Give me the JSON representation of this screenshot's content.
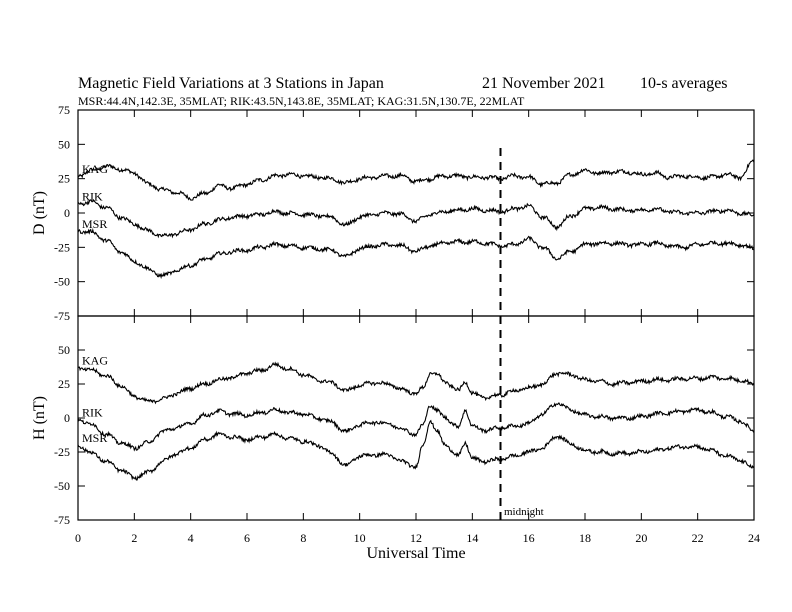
{
  "figure": {
    "title": "Magnetic Field Variations at 3 Stations in Japan",
    "date": "21 November 2021",
    "averaging": "10-s averages",
    "subtitle": "MSR:44.4N,142.3E, 35MLAT;  RIK:43.5N,143.8E, 35MLAT;  KAG:31.5N,130.7E, 22MLAT",
    "midnight_label": "midnight",
    "colors": {
      "line": "#000000",
      "background": "#ffffff"
    }
  },
  "chart_data": [
    {
      "type": "line",
      "ylabel": "D (nT)",
      "xlabel": "",
      "xlim": [
        0,
        24
      ],
      "ylim": [
        -75,
        75
      ],
      "yticks": [
        75,
        50,
        25,
        0,
        -25,
        -50,
        -75
      ],
      "xticks": [
        0,
        2,
        4,
        6,
        8,
        10,
        12,
        14,
        16,
        18,
        20,
        22,
        24
      ],
      "grid": false,
      "midnight_ut": 15,
      "series": [
        {
          "name": "KAG",
          "x": [
            0,
            0.5,
            1,
            1.5,
            2,
            2.5,
            3,
            3.5,
            4,
            4.5,
            5,
            5.5,
            6,
            6.5,
            7,
            7.5,
            8,
            8.5,
            9,
            9.5,
            10,
            10.5,
            11,
            11.5,
            12,
            12.5,
            13,
            13.5,
            14,
            14.5,
            15,
            15.5,
            16,
            16.5,
            17,
            17.5,
            18,
            18.5,
            19,
            19.5,
            20,
            20.5,
            21,
            21.5,
            22,
            22.5,
            23,
            23.5,
            24
          ],
          "values": [
            27,
            31,
            34,
            32,
            29,
            21,
            17,
            15,
            11,
            14,
            20,
            18,
            21,
            24,
            27,
            28,
            27,
            26,
            25,
            22,
            25,
            26,
            27,
            27,
            23,
            25,
            27,
            27,
            26,
            26,
            25,
            27,
            26,
            21,
            22,
            28,
            31,
            29,
            30,
            30,
            28,
            29,
            26,
            27,
            26,
            26,
            28,
            26,
            38
          ]
        },
        {
          "name": "RIK",
          "x": [
            0,
            0.5,
            1,
            1.5,
            2,
            2.5,
            3,
            3.5,
            4,
            4.5,
            5,
            5.5,
            6,
            6.5,
            7,
            7.5,
            8,
            8.5,
            9,
            9.5,
            10,
            10.5,
            11,
            11.5,
            12,
            12.5,
            13,
            13.5,
            14,
            14.5,
            15,
            15.5,
            16,
            16.5,
            17,
            17.5,
            18,
            18.5,
            19,
            19.5,
            20,
            20.5,
            21,
            21.5,
            22,
            22.5,
            23,
            23.5,
            24
          ],
          "values": [
            7,
            8,
            4,
            -3,
            -8,
            -13,
            -17,
            -15,
            -12,
            -8,
            -5,
            -3,
            -2,
            -1,
            1,
            0,
            -1,
            -2,
            -3,
            -9,
            -3,
            -1,
            0,
            -1,
            -6,
            -1,
            1,
            2,
            3,
            2,
            1,
            3,
            5,
            -3,
            -10,
            -2,
            3,
            4,
            3,
            2,
            2,
            3,
            1,
            0,
            0,
            1,
            2,
            0,
            -2
          ]
        },
        {
          "name": "MSR",
          "x": [
            0,
            0.5,
            1,
            1.5,
            2,
            2.5,
            3,
            3.5,
            4,
            4.5,
            5,
            5.5,
            6,
            6.5,
            7,
            7.5,
            8,
            8.5,
            9,
            9.5,
            10,
            10.5,
            11,
            11.5,
            12,
            12.5,
            13,
            13.5,
            14,
            14.5,
            15,
            15.5,
            16,
            16.5,
            17,
            17.5,
            18,
            18.5,
            19,
            19.5,
            20,
            20.5,
            21,
            21.5,
            22,
            22.5,
            23,
            23.5,
            24
          ],
          "values": [
            -13,
            -14,
            -20,
            -28,
            -35,
            -41,
            -46,
            -42,
            -38,
            -34,
            -30,
            -28,
            -27,
            -25,
            -23,
            -24,
            -25,
            -26,
            -27,
            -32,
            -26,
            -24,
            -23,
            -24,
            -28,
            -24,
            -22,
            -21,
            -21,
            -22,
            -24,
            -23,
            -19,
            -25,
            -33,
            -28,
            -23,
            -22,
            -22,
            -23,
            -23,
            -22,
            -24,
            -25,
            -23,
            -22,
            -22,
            -23,
            -26
          ]
        }
      ]
    },
    {
      "type": "line",
      "ylabel": "H (nT)",
      "xlabel": "Universal Time",
      "xlim": [
        0,
        24
      ],
      "ylim": [
        -75,
        75
      ],
      "yticks": [
        50,
        25,
        0,
        -25,
        -50,
        -75
      ],
      "xticks": [
        0,
        2,
        4,
        6,
        8,
        10,
        12,
        14,
        16,
        18,
        20,
        22,
        24
      ],
      "grid": false,
      "midnight_ut": 15,
      "series": [
        {
          "name": "KAG",
          "x": [
            0,
            0.5,
            1,
            1.5,
            2,
            2.5,
            3,
            3.5,
            4,
            4.5,
            5,
            5.5,
            6,
            6.5,
            7,
            7.5,
            8,
            8.5,
            9,
            9.5,
            10,
            10.5,
            11,
            11.5,
            12,
            12.25,
            12.5,
            12.75,
            13,
            13.5,
            13.75,
            14,
            14.25,
            14.5,
            15,
            15.5,
            16,
            16.5,
            17,
            17.5,
            18,
            18.5,
            19,
            19.5,
            20,
            20.5,
            21,
            21.5,
            22,
            22.5,
            23,
            23.5,
            24
          ],
          "values": [
            37,
            35,
            31,
            24,
            16,
            12,
            14,
            18,
            22,
            25,
            28,
            30,
            33,
            35,
            39,
            36,
            32,
            28,
            26,
            20,
            24,
            26,
            25,
            21,
            18,
            22,
            33,
            32,
            27,
            20,
            27,
            18,
            16,
            15,
            17,
            20,
            22,
            25,
            33,
            32,
            28,
            27,
            25,
            26,
            27,
            28,
            28,
            29,
            29,
            30,
            29,
            28,
            25
          ]
        },
        {
          "name": "RIK",
          "x": [
            0,
            0.5,
            1,
            1.5,
            2,
            2.5,
            3,
            3.5,
            4,
            4.5,
            5,
            5.5,
            6,
            6.5,
            7,
            7.5,
            8,
            8.5,
            9,
            9.5,
            10,
            10.5,
            11,
            11.5,
            12,
            12.25,
            12.5,
            12.75,
            13,
            13.5,
            13.75,
            14,
            14.25,
            14.5,
            15,
            15.5,
            16,
            16.5,
            17,
            17.5,
            18,
            18.5,
            19,
            19.5,
            20,
            20.5,
            21,
            21.5,
            22,
            22.5,
            23,
            23.5,
            24
          ],
          "values": [
            -1,
            -5,
            -12,
            -18,
            -22,
            -18,
            -10,
            -7,
            -4,
            2,
            5,
            3,
            2,
            4,
            6,
            4,
            3,
            0,
            -3,
            -10,
            -5,
            -3,
            -4,
            -8,
            -12,
            -5,
            10,
            5,
            1,
            -7,
            6,
            -6,
            -8,
            -9,
            -7,
            -6,
            -4,
            3,
            11,
            6,
            2,
            1,
            0,
            0,
            1,
            3,
            4,
            5,
            6,
            4,
            1,
            -2,
            -10
          ]
        },
        {
          "name": "MSR",
          "x": [
            0,
            0.5,
            1,
            1.5,
            2,
            2.5,
            3,
            3.5,
            4,
            4.5,
            5,
            5.5,
            6,
            6.5,
            7,
            7.5,
            8,
            8.5,
            9,
            9.5,
            10,
            10.5,
            11,
            11.5,
            12,
            12.25,
            12.5,
            12.75,
            13,
            13.5,
            13.75,
            14,
            14.25,
            14.5,
            15,
            15.5,
            16,
            16.5,
            17,
            17.5,
            18,
            18.5,
            19,
            19.5,
            20,
            20.5,
            21,
            21.5,
            22,
            22.5,
            23,
            23.5,
            24
          ],
          "values": [
            -20,
            -26,
            -32,
            -38,
            -44,
            -40,
            -32,
            -26,
            -22,
            -16,
            -12,
            -14,
            -16,
            -14,
            -12,
            -15,
            -17,
            -20,
            -26,
            -35,
            -28,
            -27,
            -27,
            -32,
            -36,
            -20,
            -2,
            -10,
            -19,
            -28,
            -18,
            -30,
            -31,
            -32,
            -30,
            -28,
            -25,
            -22,
            -13,
            -19,
            -24,
            -25,
            -26,
            -26,
            -25,
            -24,
            -22,
            -21,
            -21,
            -24,
            -28,
            -31,
            -37
          ]
        }
      ]
    }
  ]
}
